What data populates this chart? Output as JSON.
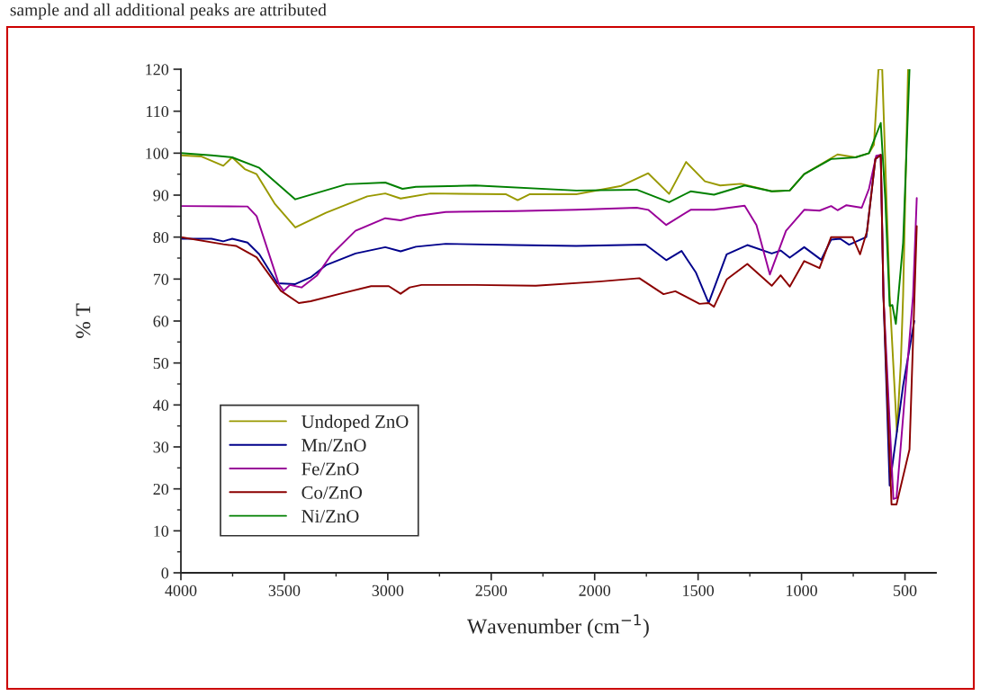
{
  "chart_data": {
    "type": "line",
    "xlabel": "Wavenumber (cm$^{−1}$)",
    "ylabel": "% T",
    "annotations": [
      "sample and all additional peaks are attributed"
    ],
    "xlim": [
      4000,
      350
    ],
    "xticks": [
      4000,
      3500,
      3000,
      2500,
      2000,
      1500,
      1000,
      500
    ],
    "ylim": [
      0,
      120
    ],
    "yticks": [
      0,
      10,
      20,
      30,
      40,
      50,
      60,
      70,
      80,
      90,
      100,
      110,
      120
    ],
    "grid": false,
    "legend": "bottom left",
    "marker": "none",
    "line_style": "solid",
    "series": [
      {
        "name": "Undoped ZnO",
        "color": "#999900",
        "x": [
          4000,
          3900,
          3795,
          3752,
          3691,
          3634,
          3547,
          3447,
          3299,
          3099,
          3012,
          2938,
          2794,
          2428,
          2372,
          2315,
          2089,
          1871,
          1741,
          1640,
          1558,
          1467,
          1393,
          1293,
          1144,
          1057,
          987,
          826,
          739,
          674,
          650,
          628,
          610,
          574,
          539,
          520,
          509,
          485
        ],
        "values": [
          99.5,
          99.2,
          97,
          99,
          96.2,
          95,
          88,
          82.3,
          85.8,
          89.7,
          90.4,
          89.2,
          90.4,
          90.2,
          88.8,
          90.2,
          90.2,
          92.2,
          95.2,
          90.3,
          97.9,
          93.3,
          92.3,
          92.7,
          90.9,
          91.1,
          95,
          99.7,
          99,
          100,
          102,
          120,
          120,
          66,
          33.6,
          50,
          66,
          120
        ]
      },
      {
        "name": "Mn/ZnO",
        "color": "#00008b",
        "x": [
          4000,
          3852,
          3795,
          3752,
          3678,
          3621,
          3534,
          3447,
          3373,
          3299,
          3156,
          3012,
          2938,
          2864,
          2720,
          2385,
          2089,
          1754,
          1654,
          1580,
          1510,
          1449,
          1362,
          1262,
          1144,
          1101,
          1057,
          987,
          905,
          857,
          813,
          770,
          687,
          643,
          617,
          604,
          574,
          509,
          455
        ],
        "values": [
          79.6,
          79.6,
          79,
          79.6,
          78.7,
          75.9,
          69,
          68.8,
          70.4,
          73.3,
          76.1,
          77.6,
          76.6,
          77.7,
          78.4,
          78.1,
          77.9,
          78.2,
          74.5,
          76.7,
          71.5,
          64.3,
          75.9,
          78.1,
          76.1,
          76.8,
          75.1,
          77.6,
          74.6,
          79.4,
          79.6,
          78.2,
          80,
          98.6,
          99.6,
          66,
          20.8,
          44.6,
          60
        ]
      },
      {
        "name": "Fe/ZnO",
        "color": "#990099",
        "x": [
          4000,
          3678,
          3634,
          3525,
          3503,
          3473,
          3417,
          3343,
          3273,
          3156,
          3012,
          2938,
          2864,
          2720,
          2385,
          2089,
          1797,
          1741,
          1654,
          1536,
          1423,
          1275,
          1218,
          1153,
          1075,
          987,
          913,
          857,
          826,
          783,
          709,
          674,
          639,
          617,
          604,
          556,
          541,
          461,
          443
        ],
        "values": [
          87.4,
          87.3,
          85,
          68.6,
          67.2,
          68.6,
          68,
          70.8,
          75.8,
          81.5,
          84.5,
          84,
          85,
          86,
          86.2,
          86.5,
          87,
          86.5,
          82.9,
          86.5,
          86.5,
          87.5,
          82.9,
          71.1,
          81.5,
          86.5,
          86.3,
          87.4,
          86.4,
          87.6,
          87,
          91.5,
          99.4,
          99.6,
          66,
          17.6,
          17.8,
          66,
          89.3
        ]
      },
      {
        "name": "Co/ZnO",
        "color": "#8b0000",
        "x": [
          4000,
          3795,
          3734,
          3634,
          3517,
          3430,
          3373,
          3229,
          3081,
          2995,
          2938,
          2894,
          2837,
          2576,
          2285,
          1980,
          1784,
          1667,
          1610,
          1493,
          1449,
          1423,
          1362,
          1262,
          1144,
          1101,
          1057,
          987,
          913,
          857,
          753,
          717,
          683,
          643,
          617,
          604,
          565,
          541,
          478,
          443
        ],
        "values": [
          80,
          78.3,
          77.9,
          75.2,
          67.2,
          64.3,
          64.7,
          66.5,
          68.3,
          68.3,
          66.5,
          68,
          68.6,
          68.6,
          68.4,
          69.4,
          70.2,
          66.4,
          67.1,
          64.1,
          64.3,
          63.4,
          69.9,
          73.6,
          68.4,
          70.9,
          68.2,
          74.3,
          72.6,
          80,
          80,
          75.9,
          81.5,
          98.6,
          99.6,
          66,
          16.3,
          16.3,
          29.4,
          82.6
        ]
      },
      {
        "name": "Ni/ZnO",
        "color": "#008000",
        "x": [
          4000,
          3852,
          3752,
          3621,
          3447,
          3199,
          3012,
          2929,
          2864,
          2576,
          2089,
          1797,
          1640,
          1536,
          1423,
          1275,
          1144,
          1057,
          987,
          857,
          739,
          674,
          617,
          595,
          574,
          561,
          544,
          509,
          478
        ],
        "values": [
          100,
          99.5,
          99,
          96.5,
          89,
          92.6,
          93,
          91.5,
          92,
          92.3,
          91.1,
          91.3,
          88.3,
          90.9,
          90.1,
          92.3,
          90.9,
          91.1,
          95,
          98.6,
          99,
          100,
          107.2,
          89,
          63.6,
          63.8,
          59.3,
          78.6,
          120
        ]
      }
    ]
  }
}
